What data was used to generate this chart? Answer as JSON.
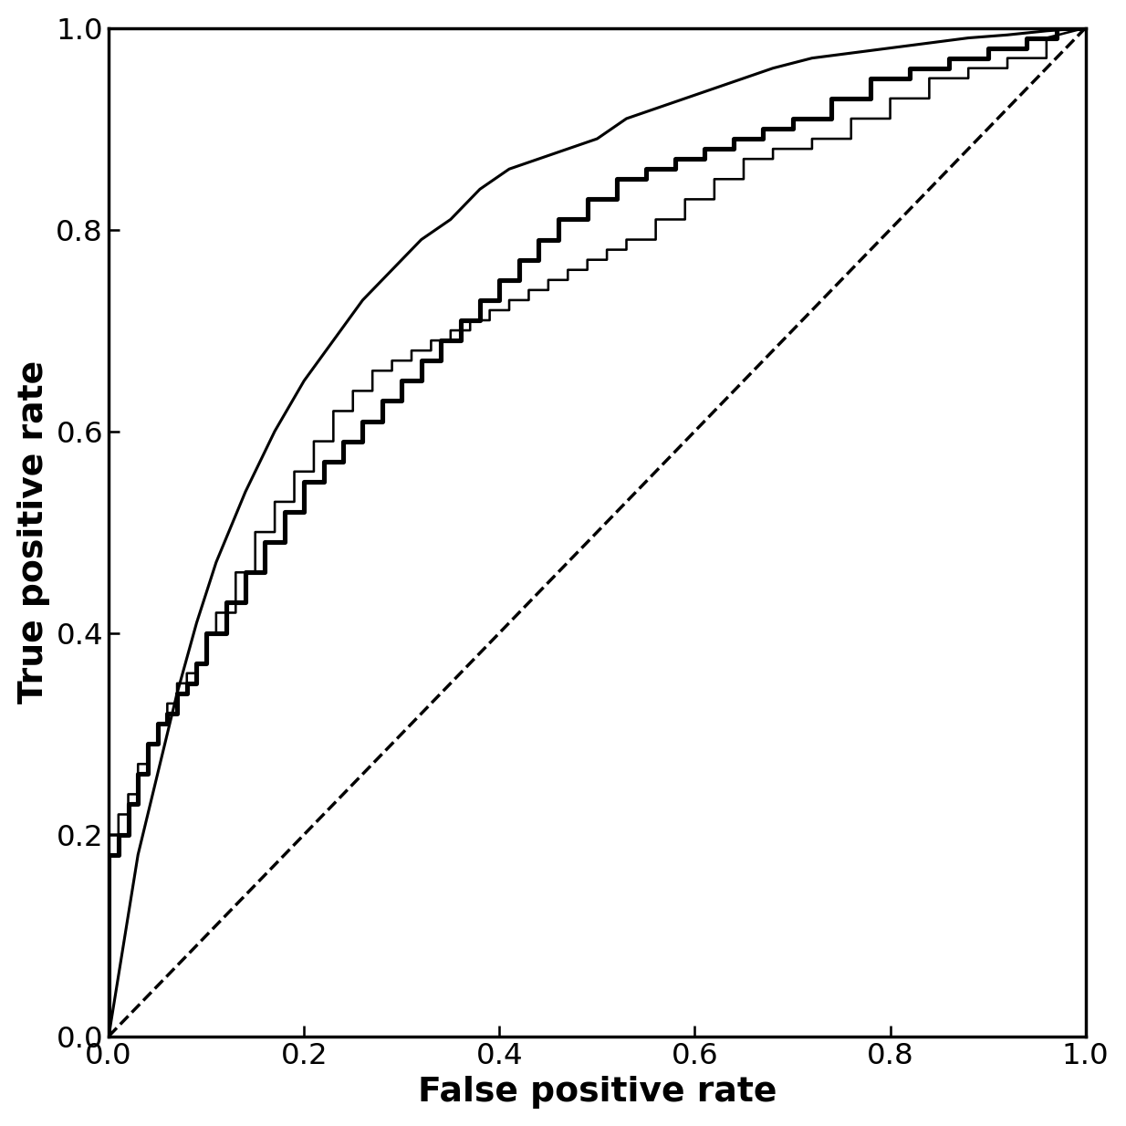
{
  "xlabel": "False positive rate",
  "ylabel": "True positive rate",
  "xlim": [
    0,
    1
  ],
  "ylim": [
    0,
    1
  ],
  "xticks": [
    0,
    0.2,
    0.4,
    0.6,
    0.8,
    1
  ],
  "yticks": [
    0,
    0.2,
    0.4,
    0.6,
    0.8,
    1
  ],
  "xlabel_fontsize": 22,
  "ylabel_fontsize": 22,
  "tick_fontsize": 19,
  "background_color": "#ffffff",
  "line_color": "#000000",
  "dashed_color": "#000000",
  "thin_lw": 1.5,
  "thick_lw": 3.0,
  "smooth_lw": 1.8,
  "dashed_lw": 2.0,
  "step_thin_fpr": [
    0.0,
    0.0,
    0.01,
    0.01,
    0.02,
    0.02,
    0.03,
    0.03,
    0.04,
    0.04,
    0.05,
    0.05,
    0.06,
    0.06,
    0.07,
    0.07,
    0.08,
    0.08,
    0.09,
    0.09,
    0.1,
    0.1,
    0.11,
    0.11,
    0.13,
    0.13,
    0.15,
    0.15,
    0.17,
    0.17,
    0.19,
    0.19,
    0.21,
    0.21,
    0.23,
    0.23,
    0.25,
    0.25,
    0.27,
    0.27,
    0.29,
    0.29,
    0.31,
    0.31,
    0.33,
    0.33,
    0.35,
    0.35,
    0.37,
    0.37,
    0.39,
    0.39,
    0.41,
    0.41,
    0.43,
    0.43,
    0.45,
    0.45,
    0.47,
    0.47,
    0.49,
    0.49,
    0.51,
    0.51,
    0.53,
    0.53,
    0.56,
    0.56,
    0.59,
    0.59,
    0.62,
    0.62,
    0.65,
    0.65,
    0.68,
    0.68,
    0.72,
    0.72,
    0.76,
    0.76,
    0.8,
    0.8,
    0.84,
    0.84,
    0.88,
    0.88,
    0.92,
    0.92,
    0.96,
    0.96,
    1.0
  ],
  "step_thin_tpr": [
    0.0,
    0.2,
    0.2,
    0.22,
    0.22,
    0.24,
    0.24,
    0.27,
    0.27,
    0.29,
    0.29,
    0.31,
    0.31,
    0.33,
    0.33,
    0.35,
    0.35,
    0.36,
    0.36,
    0.37,
    0.37,
    0.4,
    0.4,
    0.42,
    0.42,
    0.46,
    0.46,
    0.5,
    0.5,
    0.53,
    0.53,
    0.56,
    0.56,
    0.59,
    0.59,
    0.62,
    0.62,
    0.64,
    0.64,
    0.66,
    0.66,
    0.67,
    0.67,
    0.68,
    0.68,
    0.69,
    0.69,
    0.7,
    0.7,
    0.71,
    0.71,
    0.72,
    0.72,
    0.73,
    0.73,
    0.74,
    0.74,
    0.75,
    0.75,
    0.76,
    0.76,
    0.77,
    0.77,
    0.78,
    0.78,
    0.79,
    0.79,
    0.81,
    0.81,
    0.83,
    0.83,
    0.85,
    0.85,
    0.87,
    0.87,
    0.88,
    0.88,
    0.89,
    0.89,
    0.91,
    0.91,
    0.93,
    0.93,
    0.95,
    0.95,
    0.96,
    0.96,
    0.97,
    0.97,
    0.99,
    1.0
  ],
  "step_thick_fpr": [
    0.0,
    0.0,
    0.01,
    0.01,
    0.02,
    0.02,
    0.03,
    0.03,
    0.04,
    0.04,
    0.05,
    0.05,
    0.06,
    0.06,
    0.07,
    0.07,
    0.08,
    0.08,
    0.09,
    0.09,
    0.1,
    0.1,
    0.12,
    0.12,
    0.14,
    0.14,
    0.16,
    0.16,
    0.18,
    0.18,
    0.2,
    0.2,
    0.22,
    0.22,
    0.24,
    0.24,
    0.26,
    0.26,
    0.28,
    0.28,
    0.3,
    0.3,
    0.32,
    0.32,
    0.34,
    0.34,
    0.36,
    0.36,
    0.38,
    0.38,
    0.4,
    0.4,
    0.42,
    0.42,
    0.44,
    0.44,
    0.46,
    0.46,
    0.49,
    0.49,
    0.52,
    0.52,
    0.55,
    0.55,
    0.58,
    0.58,
    0.61,
    0.61,
    0.64,
    0.64,
    0.67,
    0.67,
    0.7,
    0.7,
    0.74,
    0.74,
    0.78,
    0.78,
    0.82,
    0.82,
    0.86,
    0.86,
    0.9,
    0.9,
    0.94,
    0.94,
    0.97,
    0.97,
    1.0
  ],
  "step_thick_tpr": [
    0.0,
    0.18,
    0.18,
    0.2,
    0.2,
    0.23,
    0.23,
    0.26,
    0.26,
    0.29,
    0.29,
    0.31,
    0.31,
    0.32,
    0.32,
    0.34,
    0.34,
    0.35,
    0.35,
    0.37,
    0.37,
    0.4,
    0.4,
    0.43,
    0.43,
    0.46,
    0.46,
    0.49,
    0.49,
    0.52,
    0.52,
    0.55,
    0.55,
    0.57,
    0.57,
    0.59,
    0.59,
    0.61,
    0.61,
    0.63,
    0.63,
    0.65,
    0.65,
    0.67,
    0.67,
    0.69,
    0.69,
    0.71,
    0.71,
    0.73,
    0.73,
    0.75,
    0.75,
    0.77,
    0.77,
    0.79,
    0.79,
    0.81,
    0.81,
    0.83,
    0.83,
    0.85,
    0.85,
    0.86,
    0.86,
    0.87,
    0.87,
    0.88,
    0.88,
    0.89,
    0.89,
    0.9,
    0.9,
    0.91,
    0.91,
    0.93,
    0.93,
    0.95,
    0.95,
    0.96,
    0.96,
    0.97,
    0.97,
    0.98,
    0.98,
    0.99,
    0.99,
    1.0,
    1.0
  ],
  "smooth_fpr": [
    0.0,
    0.01,
    0.02,
    0.03,
    0.05,
    0.07,
    0.09,
    0.11,
    0.14,
    0.17,
    0.2,
    0.23,
    0.26,
    0.29,
    0.32,
    0.35,
    0.38,
    0.41,
    0.44,
    0.47,
    0.5,
    0.53,
    0.56,
    0.59,
    0.62,
    0.65,
    0.68,
    0.72,
    0.76,
    0.8,
    0.84,
    0.88,
    0.92,
    0.96,
    1.0
  ],
  "smooth_tpr": [
    0.0,
    0.06,
    0.12,
    0.18,
    0.26,
    0.34,
    0.41,
    0.47,
    0.54,
    0.6,
    0.65,
    0.69,
    0.73,
    0.76,
    0.79,
    0.81,
    0.84,
    0.86,
    0.87,
    0.88,
    0.89,
    0.91,
    0.92,
    0.93,
    0.94,
    0.95,
    0.96,
    0.97,
    0.975,
    0.98,
    0.985,
    0.99,
    0.993,
    0.997,
    1.0
  ]
}
